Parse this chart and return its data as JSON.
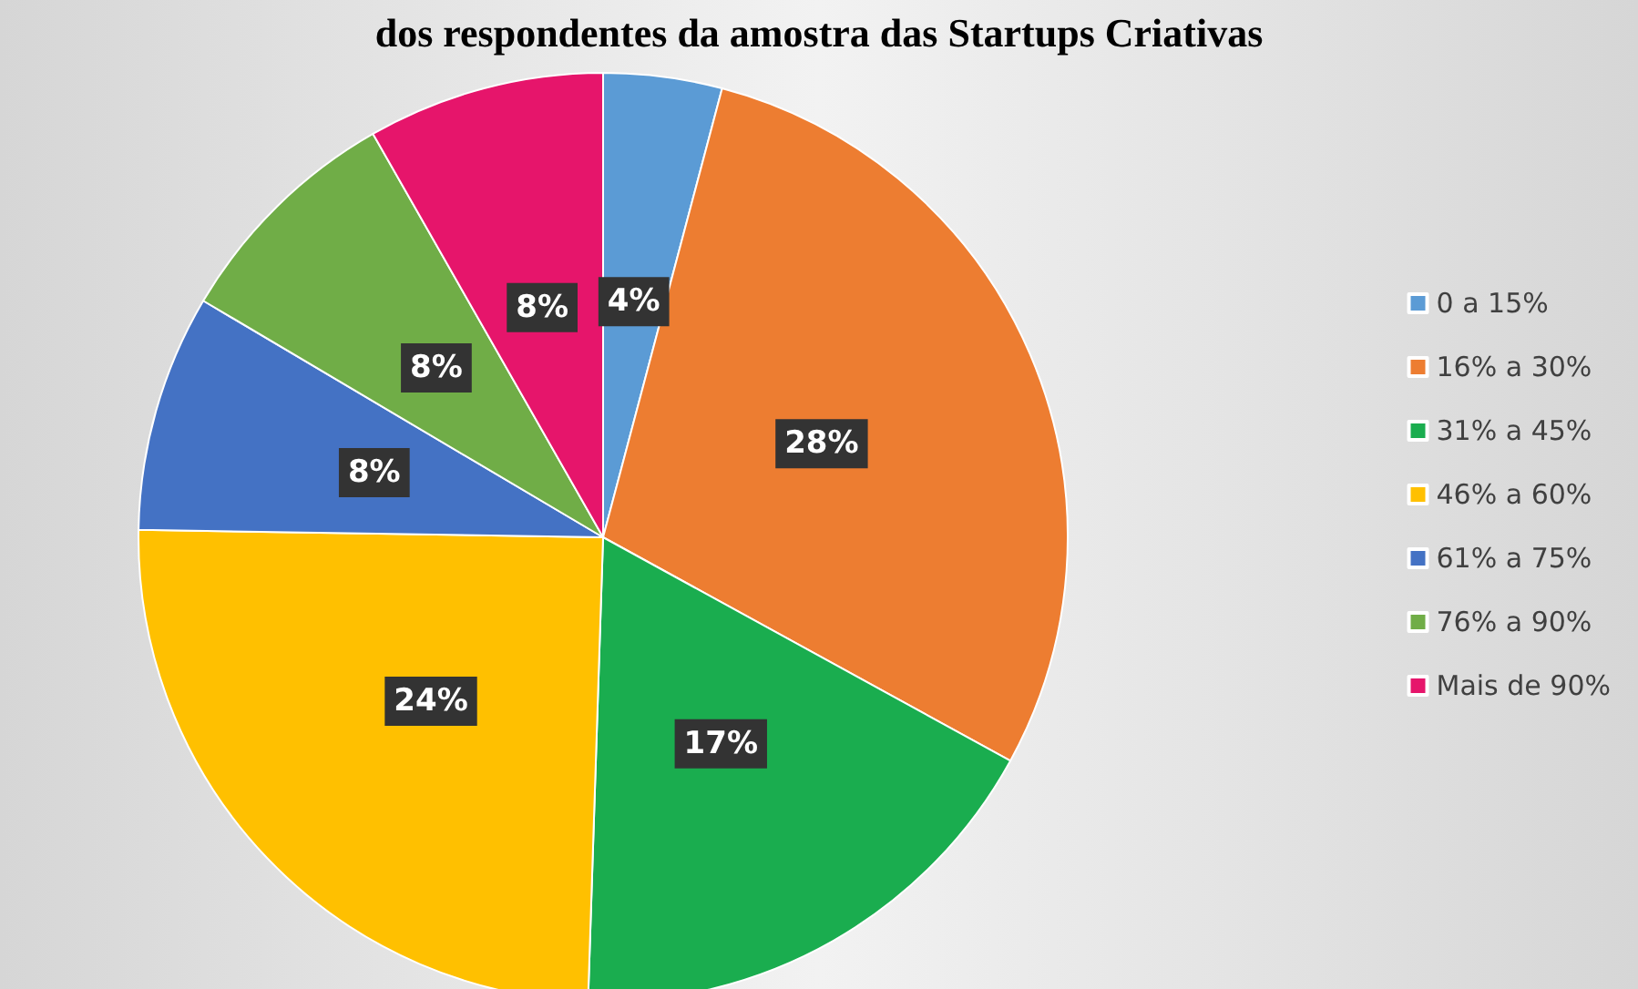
{
  "chart_data": {
    "type": "pie",
    "title": "dos respondentes da amostra das Startups Criativas",
    "categories": [
      "0 a 15%",
      "16% a 30%",
      "31% a 45%",
      "46% a 60%",
      "61% a 75%",
      "76% a 90%",
      "Mais de 90%"
    ],
    "values": [
      4,
      28,
      17,
      24,
      8,
      8,
      8
    ],
    "value_labels": [
      "4%",
      "28%",
      "17%",
      "24%",
      "8%",
      "8%",
      "8%"
    ],
    "colors": [
      "#5b9bd5",
      "#ed7d31",
      "#1aad4f",
      "#ffc000",
      "#4472c4",
      "#70ad47",
      "#e6156b"
    ],
    "legend": "right"
  }
}
